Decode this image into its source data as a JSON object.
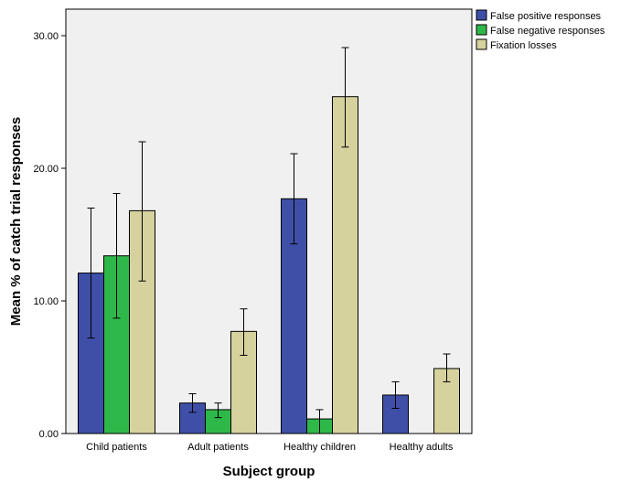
{
  "chart_data": {
    "type": "bar",
    "title": "",
    "xlabel": "Subject group",
    "ylabel": "Mean % of catch trial responses",
    "categories": [
      "Child patients",
      "Adult patients",
      "Healthy children",
      "Healthy adults"
    ],
    "ylim": [
      0,
      32
    ],
    "yticks": [
      "0.00",
      "10.00",
      "20.00",
      "30.00"
    ],
    "ytick_values": [
      0,
      10,
      20,
      30
    ],
    "series": [
      {
        "name": "False positive responses",
        "color": "#3f4fa8",
        "values": [
          12.1,
          2.3,
          17.7,
          2.9
        ],
        "err_low": [
          7.2,
          1.6,
          14.3,
          1.9
        ],
        "err_high": [
          17.0,
          3.0,
          21.1,
          3.9
        ]
      },
      {
        "name": "False negative responses",
        "color": "#2fb84a",
        "values": [
          13.4,
          1.8,
          1.1,
          0.0
        ],
        "err_low": [
          8.7,
          1.2,
          0.0,
          0.0
        ],
        "err_high": [
          18.1,
          2.3,
          1.8,
          0.0
        ]
      },
      {
        "name": "Fixation losses",
        "color": "#d6d29e",
        "values": [
          16.8,
          7.7,
          25.4,
          4.9
        ],
        "err_low": [
          11.5,
          5.9,
          21.6,
          3.9
        ],
        "err_high": [
          22.0,
          9.4,
          29.1,
          6.0
        ]
      }
    ],
    "grid": false,
    "legend_position": "top-right, outside plot"
  }
}
